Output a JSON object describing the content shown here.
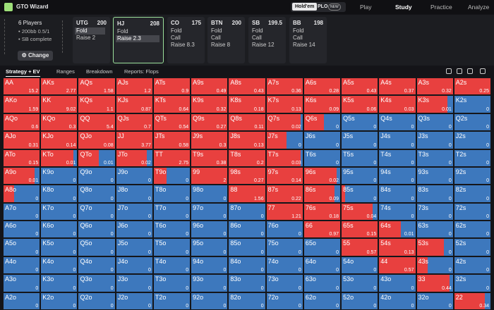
{
  "app": {
    "logo": "GTO Wizard",
    "toggle": [
      "Hold'em",
      "PLO"
    ],
    "badge": "NEW",
    "nav": [
      "Play",
      "Study",
      "Practice",
      "Analyze"
    ]
  },
  "game": {
    "players": "6 Players",
    "stack": "200bb 0.5/1",
    "action": "SB complete",
    "button": "Change"
  },
  "positions": [
    {
      "name": "UTG",
      "stack": 200,
      "actions": [
        "Fold",
        "Raise 2"
      ]
    },
    {
      "name": "HJ",
      "stack": 208,
      "actions": [
        "Fold",
        "Raise 2.3"
      ]
    },
    {
      "name": "CO",
      "stack": 175,
      "actions": [
        "Fold",
        "Call",
        "Raise 8.3"
      ]
    },
    {
      "name": "BTN",
      "stack": 200,
      "actions": [
        "Fold",
        "Call",
        "Raise 8"
      ]
    },
    {
      "name": "SB",
      "stack": 199.5,
      "actions": [
        "Fold",
        "Call",
        "Raise 12"
      ]
    },
    {
      "name": "BB",
      "stack": 198,
      "actions": [
        "Fold",
        "Call",
        "Raise 14"
      ]
    }
  ],
  "tabs": [
    "Strategy + EV",
    "Ranges",
    "Breakdown",
    "Reports: Flops"
  ],
  "hands": [
    [
      "AA",
      "AKs",
      "AQs",
      "AJs",
      "ATs",
      "A9s",
      "A8s",
      "A7s",
      "A6s",
      "A5s",
      "A4s",
      "A3s",
      "A2s"
    ],
    [
      "AKo",
      "KK",
      "KQs",
      "KJs",
      "KTs",
      "K9s",
      "K8s",
      "K7s",
      "K6s",
      "K5s",
      "K4s",
      "K3s",
      "K2s"
    ],
    [
      "AQo",
      "KQo",
      "QQ",
      "QJs",
      "QTs",
      "Q9s",
      "Q8s",
      "Q7s",
      "Q6s",
      "Q5s",
      "Q4s",
      "Q3s",
      "Q2s"
    ],
    [
      "AJo",
      "KJo",
      "QJo",
      "JJ",
      "JTs",
      "J9s",
      "J8s",
      "J7s",
      "J6s",
      "J5s",
      "J4s",
      "J3s",
      "J2s"
    ],
    [
      "ATo",
      "KTo",
      "QTo",
      "JTo",
      "TT",
      "T9s",
      "T8s",
      "T7s",
      "T6s",
      "T5s",
      "T4s",
      "T3s",
      "T2s"
    ],
    [
      "A9o",
      "K9o",
      "Q9o",
      "J9o",
      "T9o",
      "99",
      "98s",
      "97s",
      "96s",
      "95s",
      "94s",
      "93s",
      "92s"
    ],
    [
      "A8o",
      "K8o",
      "Q8o",
      "J8o",
      "T8o",
      "98o",
      "88",
      "87s",
      "86s",
      "85s",
      "84s",
      "83s",
      "82s"
    ],
    [
      "A7o",
      "K7o",
      "Q7o",
      "J7o",
      "T7o",
      "97o",
      "87o",
      "77",
      "76s",
      "75s",
      "74s",
      "73s",
      "72s"
    ],
    [
      "A6o",
      "K6o",
      "Q6o",
      "J6o",
      "T6o",
      "96o",
      "86o",
      "76o",
      "66",
      "65s",
      "64s",
      "63s",
      "62s"
    ],
    [
      "A5o",
      "K5o",
      "Q5o",
      "J5o",
      "T5o",
      "95o",
      "85o",
      "75o",
      "65o",
      "55",
      "54s",
      "53s",
      "52s"
    ],
    [
      "A4o",
      "K4o",
      "Q4o",
      "J4o",
      "T4o",
      "94o",
      "84o",
      "74o",
      "64o",
      "54o",
      "44",
      "43s",
      "42s"
    ],
    [
      "A3o",
      "K3o",
      "Q3o",
      "J3o",
      "T3o",
      "93o",
      "83o",
      "73o",
      "63o",
      "53o",
      "43o",
      "33",
      "32s"
    ],
    [
      "A2o",
      "K2o",
      "Q2o",
      "J2o",
      "T2o",
      "92o",
      "82o",
      "72o",
      "62o",
      "52o",
      "42o",
      "32o",
      "22"
    ]
  ],
  "ev": [
    [
      "15.2",
      "2.77",
      "1.58",
      "1.2",
      "0.9",
      "0.49",
      "0.43",
      "0.36",
      "0.28",
      "0.43",
      "0.37",
      "0.32",
      "0.25"
    ],
    [
      "1.59",
      "9.02",
      "1.1",
      "0.87",
      "0.64",
      "0.32",
      "0.18",
      "0.13",
      "0.09",
      "0.06",
      "0.03",
      "0.01",
      "0"
    ],
    [
      "0.6",
      "0.3",
      "5.4",
      "0.7",
      "0.54",
      "0.27",
      "0.11",
      "0.02",
      "0",
      "0",
      "0",
      "0",
      "0"
    ],
    [
      "0.31",
      "0.14",
      "0.08",
      "3.77",
      "0.58",
      "0.3",
      "0.13",
      "0",
      "0",
      "0",
      "0",
      "0",
      "0"
    ],
    [
      "0.15",
      "0.01",
      "0.01",
      "0.02",
      "2.75",
      "0.38",
      "0.2",
      "0.03",
      "0",
      "0",
      "0",
      "0",
      "0"
    ],
    [
      "0.01",
      "0",
      "0",
      "0",
      "0",
      "2",
      "0.27",
      "0.14",
      "0.02",
      "0",
      "0",
      "0",
      "0"
    ],
    [
      "0",
      "0",
      "0",
      "0",
      "0",
      "0",
      "1.56",
      "0.22",
      "0.09",
      "0",
      "0",
      "0",
      "0"
    ],
    [
      "0",
      "0",
      "0",
      "0",
      "0",
      "0",
      "0",
      "1.21",
      "0.18",
      "0.04",
      "0",
      "0",
      "0"
    ],
    [
      "0",
      "0",
      "0",
      "0",
      "0",
      "0",
      "0",
      "0",
      "0.97",
      "0.15",
      "0.01",
      "0",
      "0"
    ],
    [
      "0",
      "0",
      "0",
      "0",
      "0",
      "0",
      "0",
      "0",
      "0",
      "0.57",
      "0.13",
      "0",
      "0"
    ],
    [
      "0",
      "0",
      "0",
      "0",
      "0",
      "0",
      "0",
      "0",
      "0",
      "0",
      "0.57",
      "0",
      "0"
    ],
    [
      "0",
      "0",
      "0",
      "0",
      "0",
      "0",
      "0",
      "0",
      "0",
      "0",
      "0",
      "0.44",
      "0"
    ],
    [
      "0",
      "0",
      "0",
      "0",
      "0",
      "0",
      "0",
      "0",
      "0",
      "0",
      "0",
      "0",
      "0.34"
    ]
  ],
  "raise": [
    [
      1,
      1,
      1,
      1,
      1,
      1,
      1,
      1,
      1,
      1,
      1,
      1,
      1
    ],
    [
      1,
      1,
      1,
      1,
      1,
      1,
      1,
      1,
      1,
      1,
      1,
      0.85,
      0
    ],
    [
      1,
      1,
      1,
      1,
      1,
      1,
      1,
      0.95,
      0.55,
      0,
      0,
      0,
      0
    ],
    [
      1,
      1,
      1,
      1,
      1,
      1,
      1,
      0.55,
      0,
      0,
      0,
      0,
      0
    ],
    [
      1,
      0.9,
      0.55,
      0.85,
      1,
      1,
      1,
      0.95,
      0,
      0,
      0,
      0,
      0
    ],
    [
      0.85,
      0,
      0,
      0,
      0.35,
      1,
      1,
      1,
      0.9,
      0,
      0,
      0,
      0
    ],
    [
      0.3,
      0,
      0,
      0,
      0,
      0,
      1,
      1,
      0.85,
      0.1,
      0,
      0,
      0
    ],
    [
      0,
      0,
      0,
      0,
      0,
      0,
      0,
      1,
      1,
      0.85,
      0,
      0,
      0
    ],
    [
      0,
      0,
      0,
      0,
      0,
      0,
      0,
      0,
      1,
      1,
      0.6,
      0,
      0
    ],
    [
      0,
      0,
      0,
      0,
      0,
      0,
      0,
      0,
      0,
      1,
      1,
      0.75,
      0
    ],
    [
      0,
      0,
      0,
      0,
      0,
      0,
      0,
      0,
      0,
      0,
      1,
      0.3,
      0
    ],
    [
      0,
      0,
      0,
      0,
      0,
      0,
      0,
      0,
      0,
      0,
      0,
      0.9,
      0
    ],
    [
      0,
      0,
      0,
      0,
      0,
      0,
      0,
      0,
      0,
      0,
      0,
      0,
      0.85
    ]
  ],
  "colors": {
    "raise": "#e8403f",
    "fold": "#3d78bd"
  }
}
